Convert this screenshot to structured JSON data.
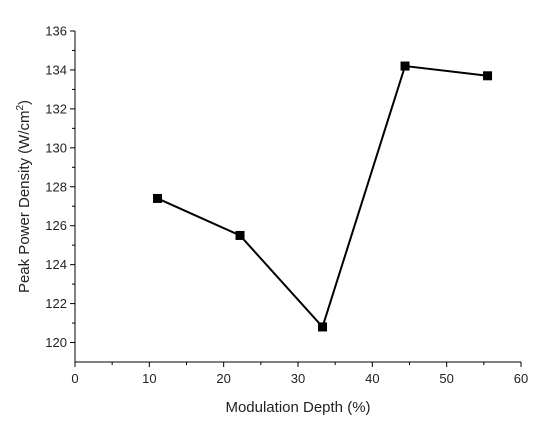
{
  "chart_data": {
    "type": "line",
    "title": "",
    "xlabel": "Modulation Depth (%)",
    "ylabel_prefix": "Peak Power Density (W/cm",
    "ylabel_sup": "2",
    "ylabel_suffix": ")",
    "xlim": [
      0,
      60
    ],
    "ylim": [
      119,
      136
    ],
    "x_ticks": [
      0,
      10,
      20,
      30,
      40,
      50,
      60
    ],
    "y_ticks": [
      120,
      122,
      124,
      126,
      128,
      130,
      132,
      134,
      136
    ],
    "grid": false,
    "legend": false,
    "marker": "square",
    "line_color": "#000000",
    "series": [
      {
        "x": [
          11.1,
          22.2,
          33.3,
          44.4,
          55.5
        ],
        "values": [
          127.4,
          125.5,
          120.8,
          134.2,
          133.7
        ]
      }
    ]
  }
}
